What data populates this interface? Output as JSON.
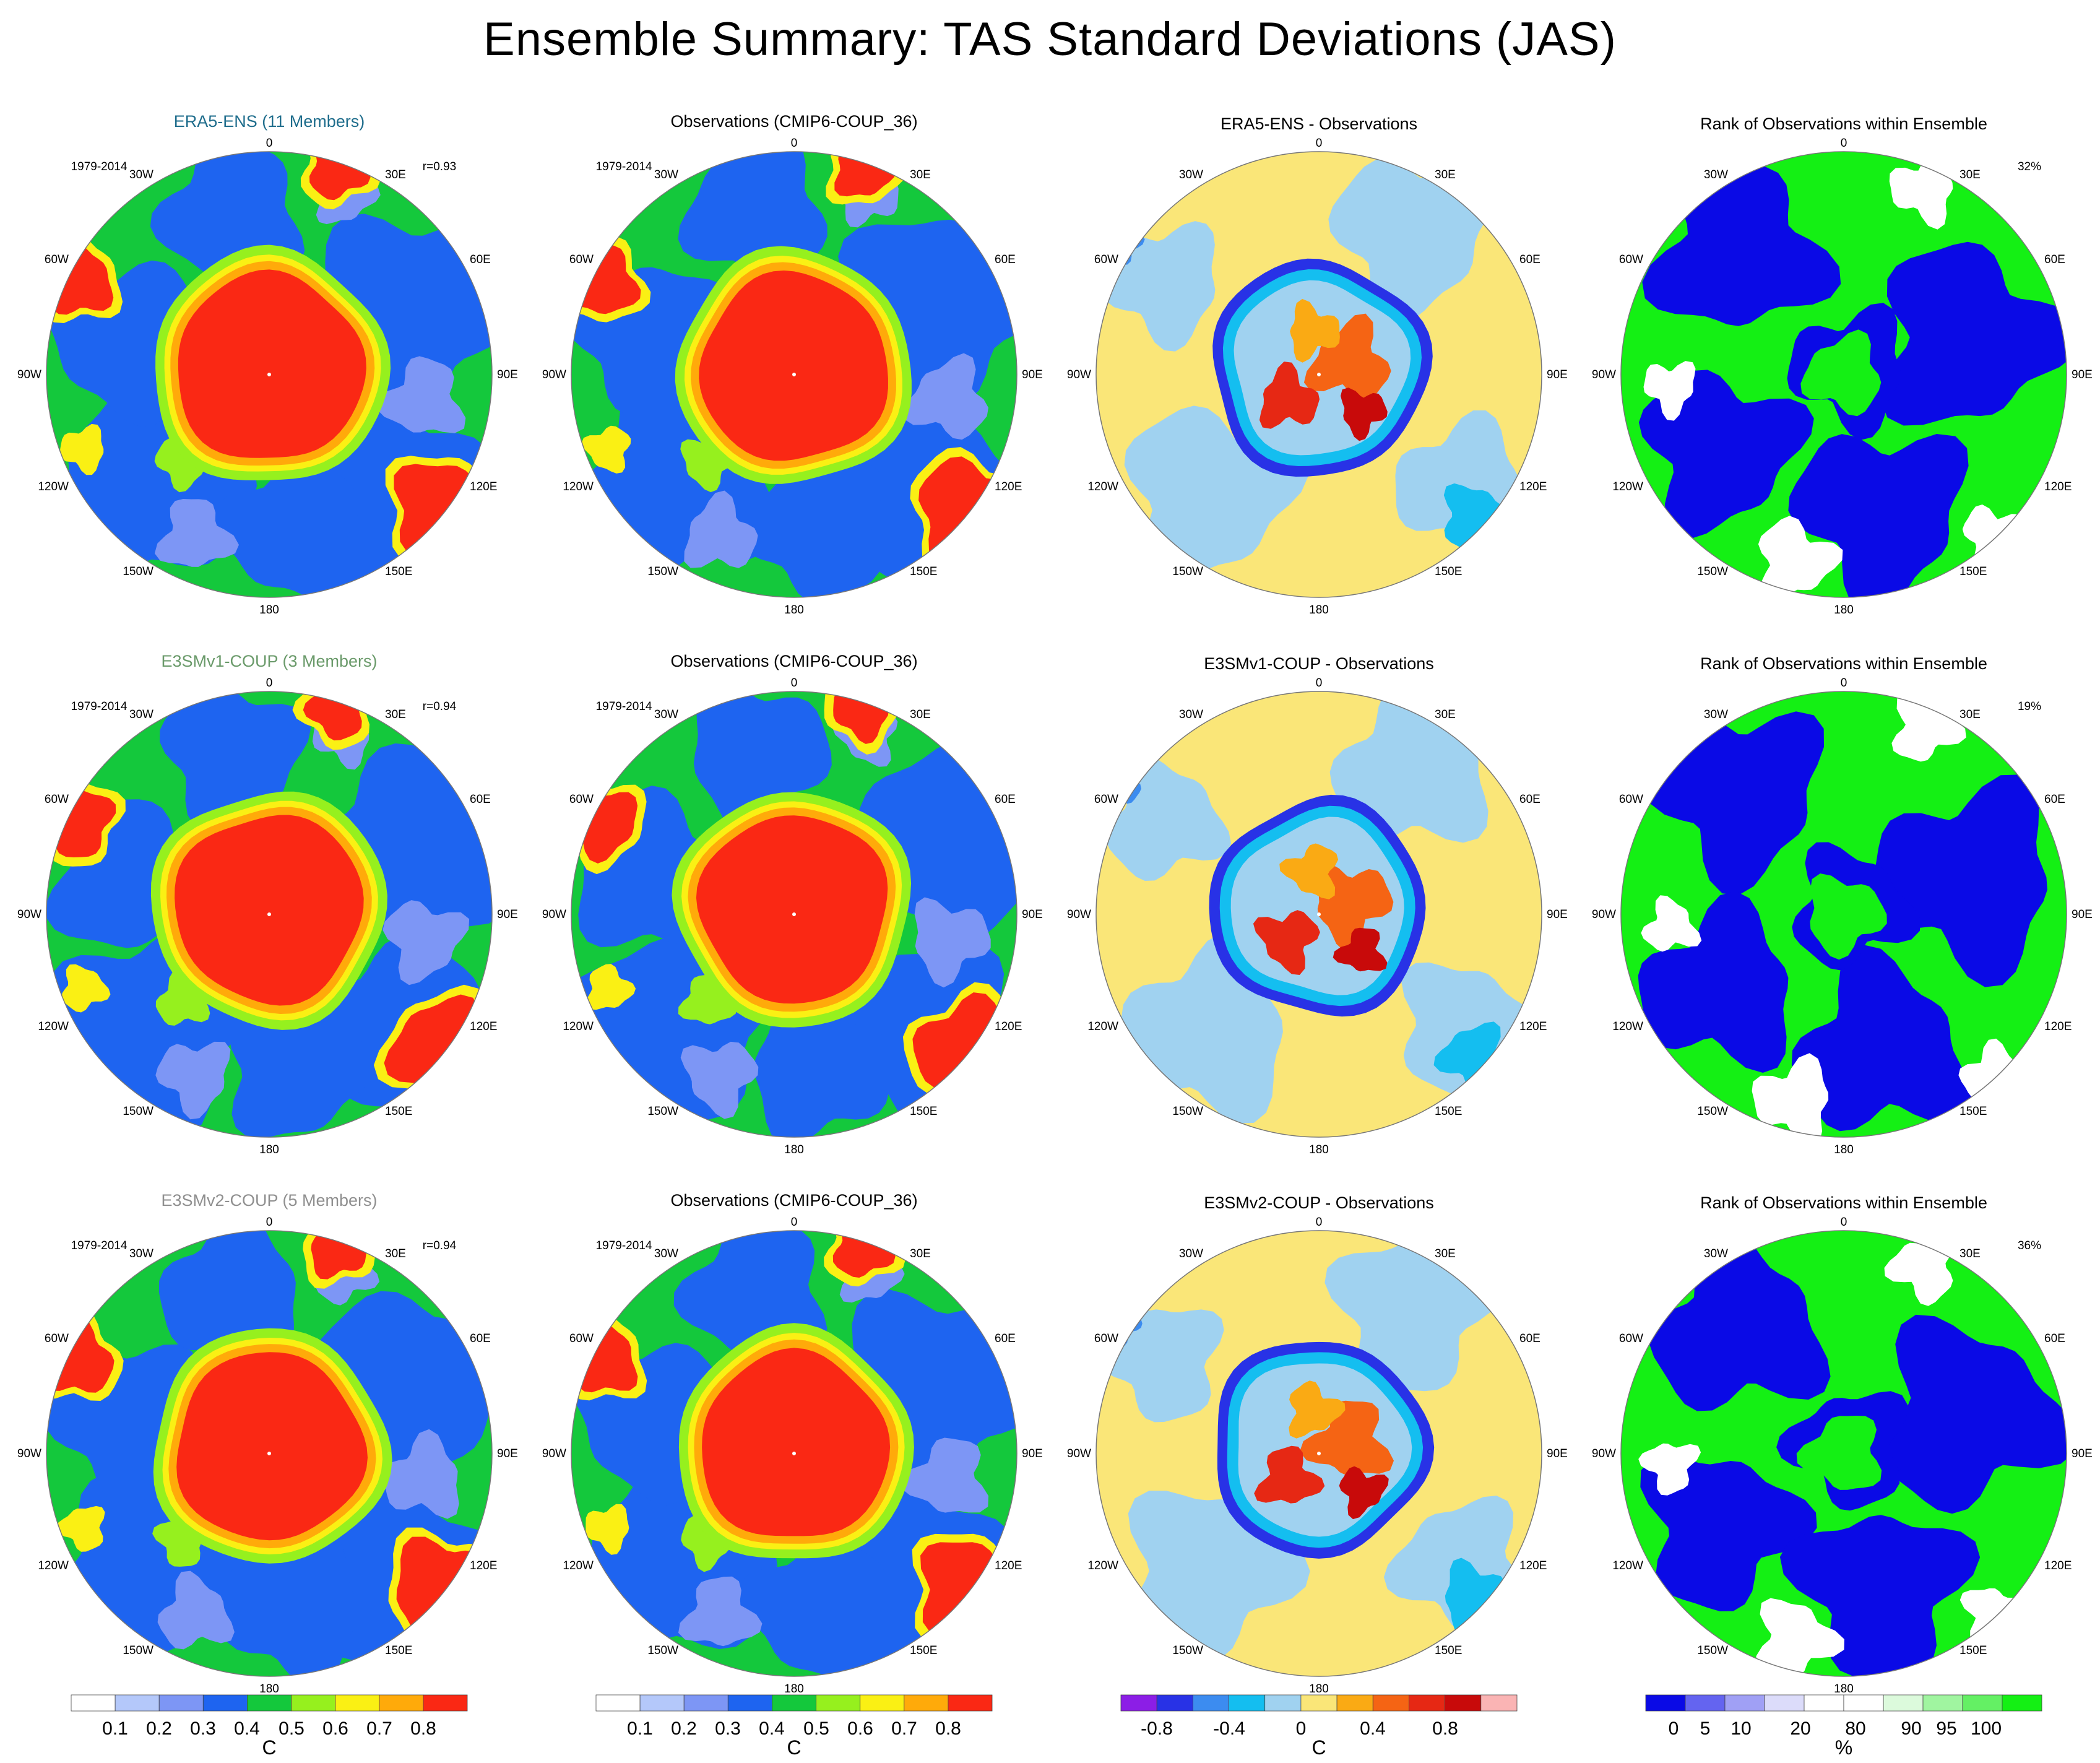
{
  "title": "Ensemble Summary: TAS Standard Deviations (JAS)",
  "panel_labels": {
    "period": "1979-2014",
    "lon_0": "0",
    "lon_30w": "30W",
    "lon_30e": "30E",
    "lon_60w": "60W",
    "lon_60e": "60E",
    "lon_90w": "90W",
    "lon_90e": "90E",
    "lon_120w": "120W",
    "lon_120e": "120E",
    "lon_150w": "150W",
    "lon_150e": "150E",
    "lon_180": "180"
  },
  "rows": [
    {
      "model_title": "ERA5-ENS (11 Members)",
      "model_color": "#1f6d8c",
      "corr": "r=0.93",
      "obs_title": "Observations (CMIP6-COUP_36)",
      "diff_title": "ERA5-ENS - Observations",
      "rank_title": "Rank of Observations within Ensemble",
      "rank_pct": "32%"
    },
    {
      "model_title": "E3SMv1-COUP (3 Members)",
      "model_color": "#6a9a6a",
      "corr": "r=0.94",
      "obs_title": "Observations (CMIP6-COUP_36)",
      "diff_title": "E3SMv1-COUP - Observations",
      "rank_title": "Rank of Observations within Ensemble",
      "rank_pct": "19%"
    },
    {
      "model_title": "E3SMv2-COUP (5 Members)",
      "model_color": "#8f8f8f",
      "corr": "r=0.94",
      "obs_title": "Observations (CMIP6-COUP_36)",
      "diff_title": "E3SMv2-COUP - Observations",
      "rank_title": "Rank of Observations within Ensemble",
      "rank_pct": "36%"
    }
  ],
  "colorbars": {
    "std": {
      "unit": "C",
      "colors": [
        "#ffffff",
        "#b4c8fa",
        "#7d96f5",
        "#1e64f0",
        "#14c83c",
        "#96f01e",
        "#faf014",
        "#ffaa0a",
        "#fa2814"
      ],
      "ticks": [
        "0.1",
        "0.2",
        "0.3",
        "0.4",
        "0.5",
        "0.6",
        "0.7",
        "0.8"
      ]
    },
    "diff": {
      "unit": "C",
      "colors": [
        "#8c1ee6",
        "#2832e6",
        "#3c8cf0",
        "#14bef0",
        "#a0d2f0",
        "#fae678",
        "#faaa14",
        "#f56414",
        "#e62814",
        "#c80a0a",
        "#fab4b4"
      ],
      "ticks": [
        "-0.8",
        "-0.4",
        "0",
        "0.4",
        "0.8"
      ]
    },
    "rank": {
      "unit": "%",
      "colors": [
        "#0a0ae6",
        "#6464f0",
        "#a0a0f5",
        "#dcdcfa",
        "#ffffff",
        "#ffffff",
        "#dcfadc",
        "#a0f5a0",
        "#64f064",
        "#14f014"
      ],
      "ticks": [
        "0",
        "5",
        "10",
        "20",
        "80",
        "90",
        "95",
        "100"
      ]
    }
  }
}
